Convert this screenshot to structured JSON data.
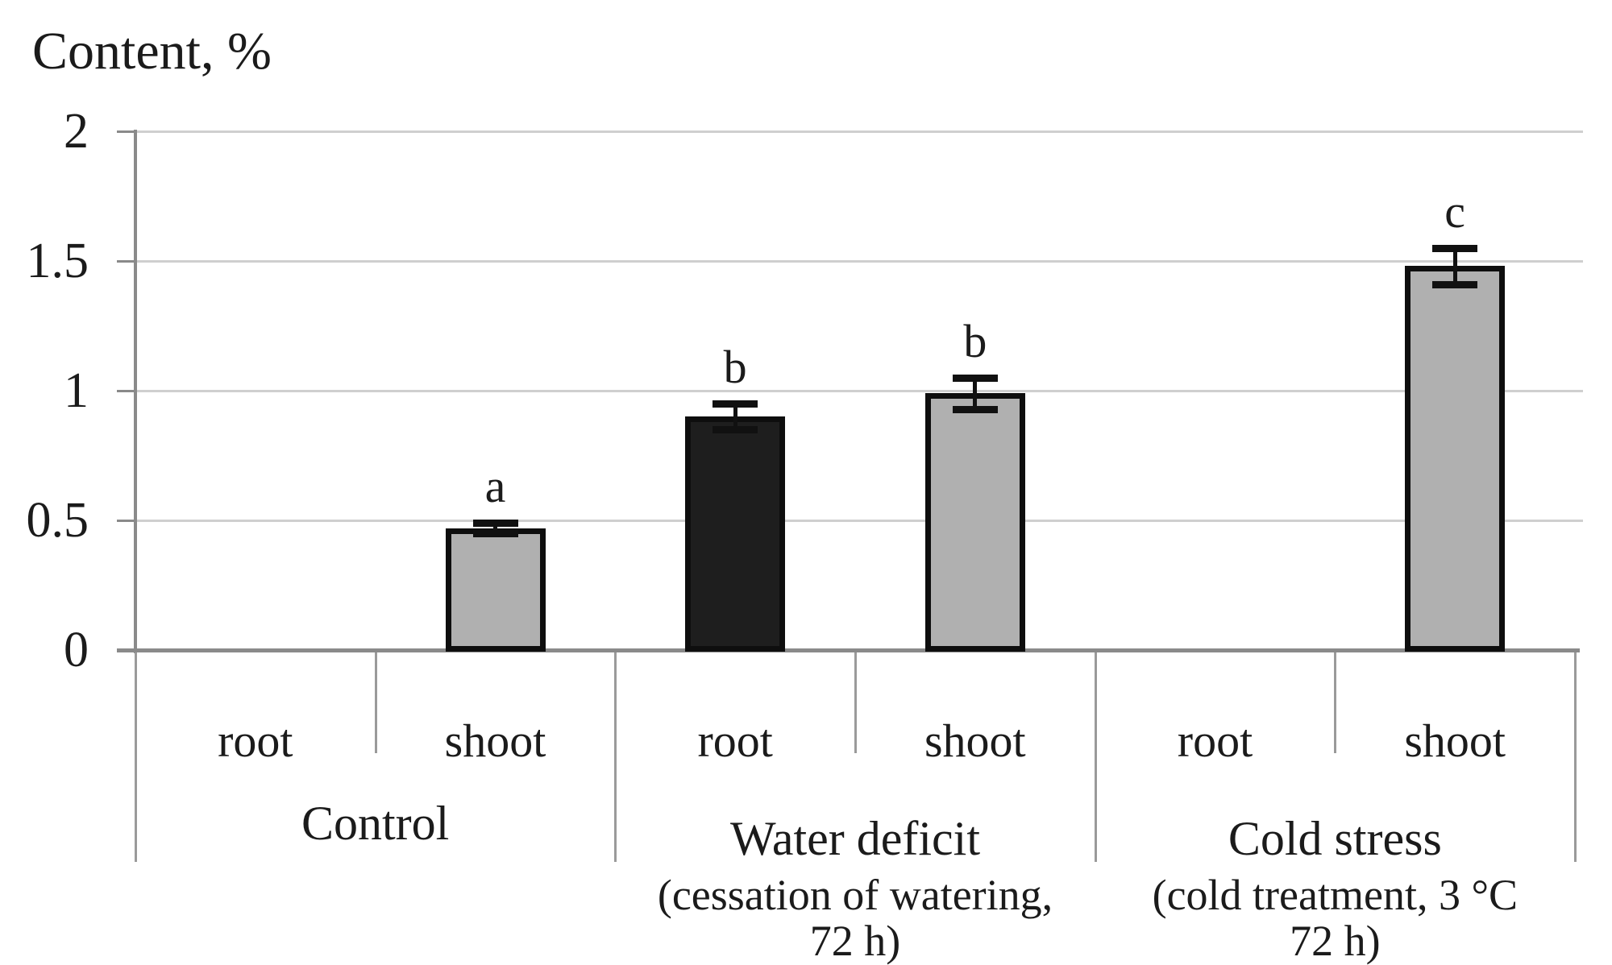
{
  "figure": {
    "background": "#ffffff"
  },
  "colors": {
    "grid": "#cfcfcf",
    "axis": "#8a8a8a",
    "separator": "#9a9a9a",
    "bar_border": "#0e0e0e",
    "bar_gray": "#b0b0b0",
    "bar_dark": "#1e1e1e",
    "error_bar": "#111111",
    "text": "#1b1b1b"
  },
  "chart_data": {
    "type": "bar",
    "title": "Content, %",
    "ylabel": "Content, %",
    "xlabel": "",
    "ylim": [
      0,
      2
    ],
    "grid": true,
    "legend_position": "none",
    "yticks": [
      {
        "value": 0,
        "label": "0"
      },
      {
        "value": 0.5,
        "label": "0.5"
      },
      {
        "value": 1,
        "label": "1"
      },
      {
        "value": 1.5,
        "label": "1.5"
      },
      {
        "value": 2,
        "label": "2"
      }
    ],
    "categories": [
      "root",
      "shoot",
      "root",
      "shoot",
      "root",
      "shoot"
    ],
    "values": [
      0,
      0.47,
      0.9,
      0.99,
      0,
      1.48
    ],
    "groups": [
      {
        "label": "Control",
        "notes": [],
        "bars": [
          {
            "category": "root",
            "value": 0,
            "error": null,
            "letter": null,
            "fill": null
          },
          {
            "category": "shoot",
            "value": 0.47,
            "error": 0.02,
            "letter": "a",
            "fill": "#b0b0b0"
          }
        ]
      },
      {
        "label": "Water deficit",
        "notes": [
          "(cessation of watering,",
          "72 h)"
        ],
        "bars": [
          {
            "category": "root",
            "value": 0.9,
            "error": 0.05,
            "letter": "b",
            "fill": "#1e1e1e"
          },
          {
            "category": "shoot",
            "value": 0.99,
            "error": 0.06,
            "letter": "b",
            "fill": "#b0b0b0"
          }
        ]
      },
      {
        "label": "Cold stress",
        "notes": [
          "(cold treatment, 3 °C",
          "72 h)"
        ],
        "bars": [
          {
            "category": "root",
            "value": 0,
            "error": null,
            "letter": null,
            "fill": null
          },
          {
            "category": "shoot",
            "value": 1.48,
            "error": 0.07,
            "letter": "c",
            "fill": "#b0b0b0"
          }
        ]
      }
    ]
  }
}
